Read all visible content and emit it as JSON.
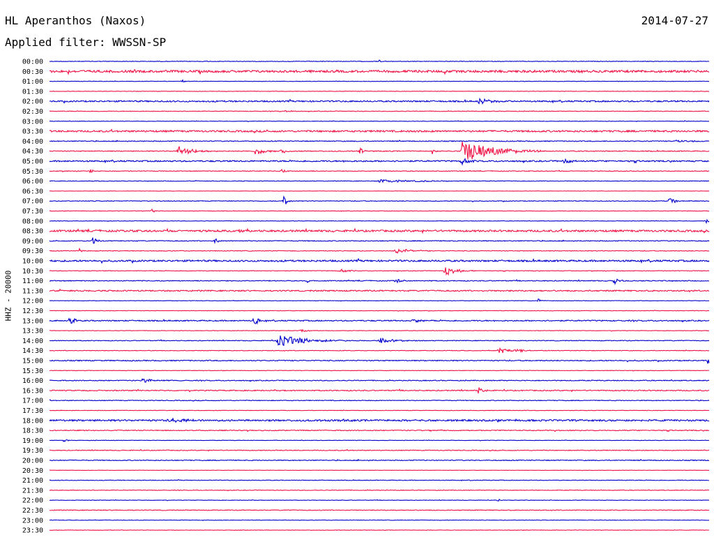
{
  "header": {
    "station": "HL Aperanthos (Naxos)",
    "date": "2014-07-27",
    "filter": "Applied filter: WWSSN-SP"
  },
  "channel_label": "HHZ - 20000",
  "colors": {
    "blue": "#0000cc",
    "red": "#ee1144",
    "text": "#000000",
    "background": "#ffffff"
  },
  "chart_data": {
    "type": "line",
    "title": "",
    "xlabel": "",
    "ylabel": "HHZ - 20000",
    "row_minutes": 30,
    "rows": [
      {
        "label": "00:00",
        "color": "blue",
        "noise": 0.4,
        "events": [
          {
            "t": 0.5,
            "amp": 2,
            "dur": 0.004
          }
        ]
      },
      {
        "label": "00:30",
        "color": "red",
        "noise": 1.6,
        "events": []
      },
      {
        "label": "01:00",
        "color": "blue",
        "noise": 0.3,
        "events": [
          {
            "t": 0.2,
            "amp": 3,
            "dur": 0.003
          }
        ]
      },
      {
        "label": "01:30",
        "color": "red",
        "noise": 0.3,
        "events": []
      },
      {
        "label": "02:00",
        "color": "blue",
        "noise": 1.0,
        "events": [
          {
            "t": 0.65,
            "amp": 4,
            "dur": 0.02
          }
        ]
      },
      {
        "label": "02:30",
        "color": "red",
        "noise": 0.4,
        "events": [
          {
            "t": 0.35,
            "amp": 2,
            "dur": 0.01
          }
        ]
      },
      {
        "label": "03:00",
        "color": "blue",
        "noise": 0.3,
        "events": [
          {
            "t": 0.96,
            "amp": 2,
            "dur": 0.003
          }
        ]
      },
      {
        "label": "03:30",
        "color": "red",
        "noise": 1.2,
        "events": [
          {
            "t": 0.55,
            "amp": 3,
            "dur": 0.005
          }
        ]
      },
      {
        "label": "04:00",
        "color": "blue",
        "noise": 0.6,
        "events": [
          {
            "t": 0.95,
            "amp": 2,
            "dur": 0.02
          }
        ]
      },
      {
        "label": "04:30",
        "color": "red",
        "noise": 0.6,
        "events": [
          {
            "t": 0.195,
            "amp": 7,
            "dur": 0.02
          },
          {
            "t": 0.31,
            "amp": 6,
            "dur": 0.015
          },
          {
            "t": 0.35,
            "amp": 4,
            "dur": 0.01
          },
          {
            "t": 0.47,
            "amp": 6,
            "dur": 0.005
          },
          {
            "t": 0.58,
            "amp": 4,
            "dur": 0.005
          },
          {
            "t": 0.625,
            "amp": 18,
            "dur": 0.04
          }
        ]
      },
      {
        "label": "05:00",
        "color": "blue",
        "noise": 1.0,
        "events": [
          {
            "t": 0.625,
            "amp": 6,
            "dur": 0.008
          },
          {
            "t": 0.78,
            "amp": 5,
            "dur": 0.01
          }
        ]
      },
      {
        "label": "05:30",
        "color": "red",
        "noise": 0.5,
        "events": [
          {
            "t": 0.06,
            "amp": 5,
            "dur": 0.004
          },
          {
            "t": 0.35,
            "amp": 3,
            "dur": 0.01
          }
        ]
      },
      {
        "label": "06:00",
        "color": "blue",
        "noise": 0.4,
        "events": [
          {
            "t": 0.5,
            "amp": 2,
            "dur": 0.06
          }
        ]
      },
      {
        "label": "06:30",
        "color": "red",
        "noise": 0.2,
        "events": []
      },
      {
        "label": "07:00",
        "color": "blue",
        "noise": 0.5,
        "events": [
          {
            "t": 0.355,
            "amp": 9,
            "dur": 0.005
          },
          {
            "t": 0.94,
            "amp": 9,
            "dur": 0.006
          }
        ]
      },
      {
        "label": "07:30",
        "color": "red",
        "noise": 0.3,
        "events": [
          {
            "t": 0.155,
            "amp": 4,
            "dur": 0.003
          }
        ]
      },
      {
        "label": "08:00",
        "color": "blue",
        "noise": 0.3,
        "events": [
          {
            "t": 0.995,
            "amp": 3,
            "dur": 0.005
          }
        ]
      },
      {
        "label": "08:30",
        "color": "red",
        "noise": 1.3,
        "events": [
          {
            "t": 0.28,
            "amp": 3,
            "dur": 0.01
          }
        ]
      },
      {
        "label": "09:00",
        "color": "blue",
        "noise": 0.6,
        "events": [
          {
            "t": 0.065,
            "amp": 10,
            "dur": 0.004
          },
          {
            "t": 0.25,
            "amp": 6,
            "dur": 0.004
          }
        ]
      },
      {
        "label": "09:30",
        "color": "red",
        "noise": 0.5,
        "events": [
          {
            "t": 0.045,
            "amp": 4,
            "dur": 0.004
          },
          {
            "t": 0.525,
            "amp": 4,
            "dur": 0.02
          }
        ]
      },
      {
        "label": "10:00",
        "color": "blue",
        "noise": 1.2,
        "events": []
      },
      {
        "label": "10:30",
        "color": "red",
        "noise": 0.4,
        "events": [
          {
            "t": 0.44,
            "amp": 3,
            "dur": 0.01
          },
          {
            "t": 0.6,
            "amp": 8,
            "dur": 0.015
          }
        ]
      },
      {
        "label": "11:00",
        "color": "blue",
        "noise": 0.6,
        "events": [
          {
            "t": 0.39,
            "amp": 4,
            "dur": 0.005
          },
          {
            "t": 0.525,
            "amp": 4,
            "dur": 0.008
          },
          {
            "t": 0.855,
            "amp": 7,
            "dur": 0.005
          }
        ]
      },
      {
        "label": "11:30",
        "color": "red",
        "noise": 0.9,
        "events": []
      },
      {
        "label": "12:00",
        "color": "blue",
        "noise": 0.3,
        "events": [
          {
            "t": 0.74,
            "amp": 4,
            "dur": 0.004
          }
        ]
      },
      {
        "label": "12:30",
        "color": "red",
        "noise": 0.3,
        "events": []
      },
      {
        "label": "13:00",
        "color": "blue",
        "noise": 0.8,
        "events": [
          {
            "t": 0.03,
            "amp": 9,
            "dur": 0.005
          },
          {
            "t": 0.31,
            "amp": 12,
            "dur": 0.005
          },
          {
            "t": 0.55,
            "amp": 4,
            "dur": 0.01
          }
        ]
      },
      {
        "label": "13:30",
        "color": "red",
        "noise": 0.3,
        "events": [
          {
            "t": 0.38,
            "amp": 3,
            "dur": 0.01
          }
        ]
      },
      {
        "label": "14:00",
        "color": "blue",
        "noise": 0.5,
        "events": [
          {
            "t": 0.345,
            "amp": 9,
            "dur": 0.035
          },
          {
            "t": 0.5,
            "amp": 4,
            "dur": 0.02
          }
        ]
      },
      {
        "label": "14:30",
        "color": "red",
        "noise": 0.4,
        "events": [
          {
            "t": 0.68,
            "amp": 4,
            "dur": 0.03
          }
        ]
      },
      {
        "label": "15:00",
        "color": "blue",
        "noise": 0.7,
        "events": [
          {
            "t": 0.995,
            "amp": 5,
            "dur": 0.015
          }
        ]
      },
      {
        "label": "15:30",
        "color": "red",
        "noise": 0.3,
        "events": []
      },
      {
        "label": "16:00",
        "color": "blue",
        "noise": 0.6,
        "events": [
          {
            "t": 0.14,
            "amp": 3,
            "dur": 0.02
          }
        ]
      },
      {
        "label": "16:30",
        "color": "red",
        "noise": 0.7,
        "events": [
          {
            "t": 0.65,
            "amp": 6,
            "dur": 0.006
          }
        ]
      },
      {
        "label": "17:00",
        "color": "blue",
        "noise": 0.5,
        "events": []
      },
      {
        "label": "17:30",
        "color": "red",
        "noise": 0.3,
        "events": []
      },
      {
        "label": "18:00",
        "color": "blue",
        "noise": 1.2,
        "events": [
          {
            "t": 0.18,
            "amp": 3,
            "dur": 0.04
          },
          {
            "t": 0.44,
            "amp": 3,
            "dur": 0.005
          }
        ]
      },
      {
        "label": "18:30",
        "color": "red",
        "noise": 0.6,
        "events": []
      },
      {
        "label": "19:00",
        "color": "blue",
        "noise": 0.3,
        "events": [
          {
            "t": 0.02,
            "amp": 3,
            "dur": 0.004
          }
        ]
      },
      {
        "label": "19:30",
        "color": "red",
        "noise": 0.5,
        "events": []
      },
      {
        "label": "20:00",
        "color": "blue",
        "noise": 0.6,
        "events": []
      },
      {
        "label": "20:30",
        "color": "red",
        "noise": 0.2,
        "events": []
      },
      {
        "label": "21:00",
        "color": "blue",
        "noise": 0.4,
        "events": []
      },
      {
        "label": "21:30",
        "color": "red",
        "noise": 0.4,
        "events": []
      },
      {
        "label": "22:00",
        "color": "blue",
        "noise": 0.3,
        "events": [
          {
            "t": 0.68,
            "amp": 2,
            "dur": 0.004
          }
        ]
      },
      {
        "label": "22:30",
        "color": "red",
        "noise": 0.5,
        "events": []
      },
      {
        "label": "23:00",
        "color": "blue",
        "noise": 0.3,
        "events": []
      },
      {
        "label": "23:30",
        "color": "red",
        "noise": 0.3,
        "events": []
      }
    ]
  }
}
